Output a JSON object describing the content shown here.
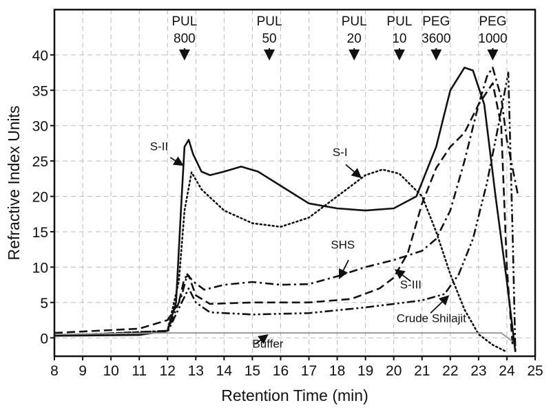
{
  "chart_data": {
    "type": "line",
    "xlabel": "Retention Time (min)",
    "ylabel": "Refractive Index Units",
    "xlim": [
      8,
      25
    ],
    "ylim": [
      -2.6,
      46.4
    ],
    "xticks": [
      8,
      9,
      10,
      11,
      12,
      13,
      14,
      15,
      16,
      17,
      18,
      19,
      20,
      21,
      22,
      23,
      24,
      25
    ],
    "yticks": [
      0,
      5,
      10,
      15,
      20,
      25,
      30,
      35,
      40
    ],
    "grid": true,
    "series": [
      {
        "name": "S-II",
        "style": "solid",
        "color": "#111111",
        "x": [
          8,
          11,
          12,
          12.3,
          12.5,
          12.6,
          12.75,
          12.9,
          13.2,
          13.5,
          14,
          14.6,
          15.2,
          16,
          17,
          18,
          19,
          20,
          20.8,
          21.5,
          22,
          22.5,
          22.8,
          23.2,
          23.6,
          24,
          24.3
        ],
        "y": [
          0.3,
          0.4,
          1,
          5,
          20,
          27,
          28,
          26,
          23.5,
          23,
          23.5,
          24.2,
          23.5,
          21.5,
          19,
          18.3,
          18,
          18.3,
          20,
          27,
          35,
          38.2,
          37.8,
          33,
          20,
          8,
          -2
        ]
      },
      {
        "name": "S-I",
        "style": "dotted",
        "color": "#111111",
        "x": [
          8,
          12,
          12.4,
          12.6,
          12.85,
          13.2,
          14,
          15,
          16,
          17,
          18,
          19,
          19.6,
          20.2,
          21,
          21.5,
          22,
          22.5,
          23,
          23.5,
          24
        ],
        "y": [
          0.3,
          1,
          8,
          18,
          23.4,
          21,
          18,
          16.2,
          15.7,
          17,
          20,
          23,
          23.8,
          23.2,
          20,
          15,
          9,
          4,
          0.5,
          -1,
          -2
        ]
      },
      {
        "name": "S-III",
        "style": "dashed",
        "color": "#111111",
        "x": [
          8,
          11,
          12,
          12.4,
          12.6,
          12.75,
          13,
          13.5,
          15,
          17,
          18.5,
          19.5,
          20,
          20.5,
          21,
          21.5,
          22,
          22.5,
          23,
          23.5,
          23.8,
          24,
          24.2
        ],
        "y": [
          0.7,
          1.3,
          2.5,
          5,
          8.5,
          8.8,
          6,
          4.8,
          5,
          5,
          5.5,
          7,
          8.5,
          12,
          19,
          24,
          27,
          29,
          33,
          36,
          30,
          10,
          -1
        ]
      },
      {
        "name": "SHS",
        "style": "dashdot",
        "color": "#111111",
        "x": [
          8,
          12,
          12.5,
          12.7,
          12.9,
          13.3,
          14,
          15,
          16,
          17,
          18,
          19,
          20,
          21,
          21.5,
          22,
          22.5,
          23,
          23.3,
          23.5,
          23.8,
          24,
          24.4
        ],
        "y": [
          0.3,
          1,
          6,
          9,
          8,
          6.8,
          7.5,
          7.9,
          7.5,
          7.6,
          8.7,
          10,
          11,
          12.3,
          14,
          18,
          25,
          33,
          37,
          38.2,
          34,
          28,
          20
        ]
      },
      {
        "name": "Crude Shilajit",
        "style": "dashdotdot",
        "color": "#111111",
        "x": [
          8,
          12,
          12.5,
          12.75,
          13,
          13.5,
          15,
          17,
          19,
          20,
          21,
          21.8,
          22.3,
          22.8,
          23.3,
          23.7,
          24.05,
          24.2,
          24.3
        ],
        "y": [
          0.3,
          0.8,
          5,
          7,
          5,
          3.6,
          3.3,
          3.5,
          4.3,
          4.8,
          5.3,
          6.2,
          9,
          14,
          22,
          30,
          37.5,
          15,
          -2
        ]
      },
      {
        "name": "Buffer",
        "style": "solid",
        "color": "#999999",
        "x": [
          8,
          12,
          23.8,
          24.2
        ],
        "y": [
          0.5,
          0.7,
          0.7,
          -0.5
        ]
      }
    ],
    "markers": [
      {
        "line1": "PUL",
        "line2": "800",
        "x": 12.6
      },
      {
        "line1": "PUL",
        "line2": "50",
        "x": 15.6
      },
      {
        "line1": "PUL",
        "line2": "20",
        "x": 18.6
      },
      {
        "line1": "PUL",
        "line2": "10",
        "x": 20.2
      },
      {
        "line1": "PEG",
        "line2": "3600",
        "x": 21.5
      },
      {
        "line1": "PEG",
        "line2": "1000",
        "x": 23.5
      }
    ],
    "annotations": [
      {
        "text": "S-II",
        "tx": 11.7,
        "ty": 26.5,
        "ax1": 12.1,
        "ay1": 25.5,
        "ax2": 12.5,
        "ay2": 24.5
      },
      {
        "text": "S-I",
        "tx": 18.1,
        "ty": 25.7,
        "ax1": 18.3,
        "ay1": 24.5,
        "ax2": 18.8,
        "ay2": 22.8
      },
      {
        "text": "SHS",
        "tx": 18.2,
        "ty": 12.6,
        "ax1": 18.4,
        "ay1": 11,
        "ax2": 18.1,
        "ay2": 8.6
      },
      {
        "text": "S-III",
        "tx": 20.6,
        "ty": 7,
        "ax1": 20.6,
        "ay1": 8,
        "ax2": 20.1,
        "ay2": 9.5
      },
      {
        "text": "Crude Shilajit",
        "tx": 20.1,
        "ty": 2.2,
        "ax1": 21.3,
        "ay1": 3.5,
        "ax2": 21.9,
        "ay2": 5.8
      },
      {
        "text": "Buffer",
        "tx": 15,
        "ty": -1.4,
        "ax1": 15.1,
        "ay1": -0.9,
        "ax2": 15.5,
        "ay2": 0.3
      }
    ]
  }
}
